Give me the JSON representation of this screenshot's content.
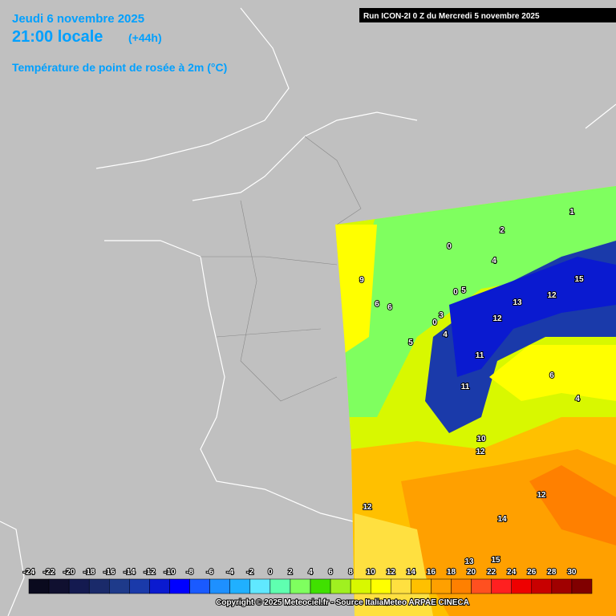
{
  "header": {
    "date": "Jeudi 6 novembre 2025",
    "time": "21:00 locale",
    "lead": "(+44h)",
    "parameter": "Température de point de rosée à 2m (°C)",
    "run": "Run ICON-2I 0 Z du Mercredi 5 novembre 2025"
  },
  "legend": {
    "values": [
      -24,
      -22,
      -20,
      -18,
      -16,
      -14,
      -12,
      -10,
      -8,
      -6,
      -4,
      -2,
      0,
      2,
      4,
      6,
      8,
      10,
      12,
      14,
      16,
      18,
      20,
      22,
      24,
      26,
      28,
      30
    ],
    "colors": [
      "#0a0a1e",
      "#101030",
      "#141a50",
      "#1a2a6a",
      "#1e3a8a",
      "#1a3aaa",
      "#0a1ad0",
      "#0000ff",
      "#1a5aff",
      "#1e90ff",
      "#20b0ff",
      "#60e8ff",
      "#5fffb0",
      "#7fff5f",
      "#40e000",
      "#a0f020",
      "#d8f800",
      "#ffff00",
      "#ffe040",
      "#ffc000",
      "#ffa000",
      "#ff8000",
      "#ff5020",
      "#ff2020",
      "#ee0000",
      "#c80000",
      "#a00000",
      "#800000"
    ]
  },
  "map": {
    "labels": [
      9,
      6,
      6,
      5,
      0,
      3,
      4,
      0,
      5,
      13,
      12,
      15,
      12,
      11,
      11,
      10,
      12,
      6,
      4,
      12,
      14,
      12,
      13,
      15,
      1,
      2,
      4,
      0
    ]
  },
  "footer": {
    "copyright": "Copyright © 2025 Meteociel.fr - Source ItaliaMeteo ARPAE CINECA"
  }
}
